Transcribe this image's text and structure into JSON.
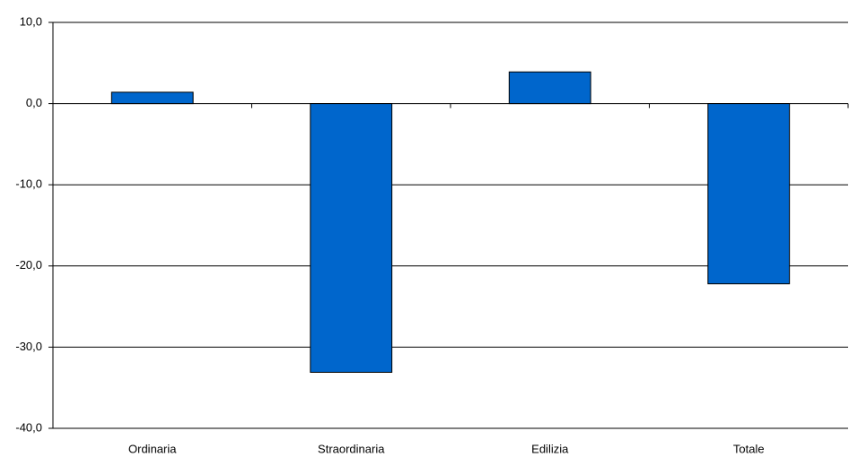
{
  "chart_data": {
    "type": "bar",
    "categories": [
      "Ordinaria",
      "Straordinaria",
      "Edilizia",
      "Totale"
    ],
    "values": [
      1.4,
      -33.1,
      3.9,
      -22.2
    ],
    "color": "#0066cc",
    "ylim": [
      -40,
      10
    ],
    "yticks": [
      {
        "value": -40,
        "label": "-40,0"
      },
      {
        "value": -30,
        "label": "-30,0"
      },
      {
        "value": -20,
        "label": "-20,0"
      },
      {
        "value": -10,
        "label": "-10,0"
      },
      {
        "value": 0,
        "label": "0,0"
      },
      {
        "value": 10,
        "label": "10,0"
      }
    ],
    "grid": true
  }
}
